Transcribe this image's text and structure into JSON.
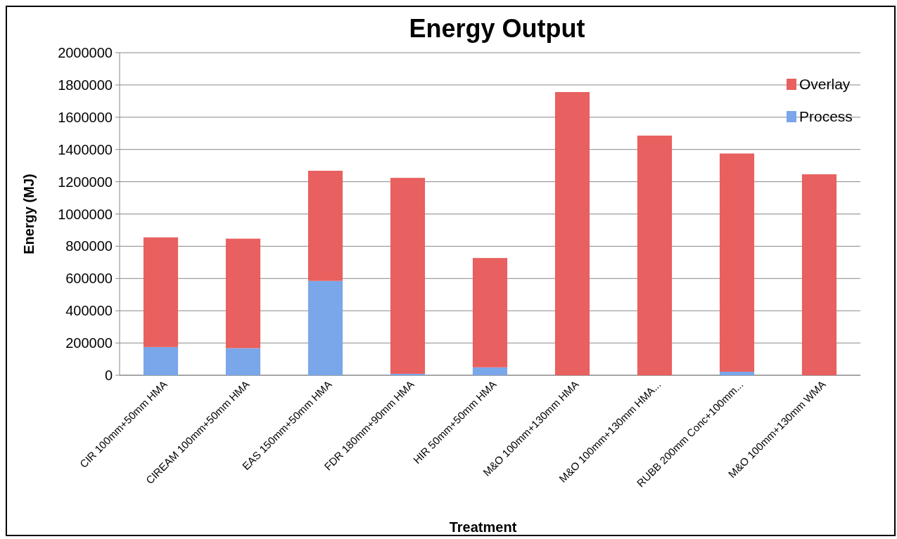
{
  "chart_data": {
    "type": "bar",
    "title": "Energy Output",
    "xlabel": "Treatment",
    "ylabel": "Energy (MJ)",
    "categories": [
      "CIR 100mm+50mm HMA",
      "CIREAM 100mm+50mm HMA",
      "EAS 150mm+50mm HMA",
      "FDR 180mm+90mm HMA",
      "HIR 50mm+50mm HMA",
      "M&O 100mm+130mm HMA",
      "M&O 100mm+130mm HMA...",
      "RUBB 200mm Conc+100mm...",
      "M&O 100mm+130mm WMA"
    ],
    "series": [
      {
        "name": "Process",
        "color": "#7aa6ea",
        "values": [
          175000,
          168000,
          585000,
          9000,
          49000,
          0,
          0,
          22000,
          0
        ]
      },
      {
        "name": "Overlay",
        "color": "#e8605f",
        "values": [
          680000,
          679000,
          683000,
          1215000,
          678000,
          1756000,
          1486000,
          1353000,
          1246000
        ]
      }
    ],
    "stacked": true,
    "ylim": [
      0,
      2000000
    ],
    "yticks": [
      0,
      200000,
      400000,
      600000,
      800000,
      1000000,
      1200000,
      1400000,
      1600000,
      1800000,
      2000000
    ],
    "grid": "y",
    "legend": "top right"
  }
}
